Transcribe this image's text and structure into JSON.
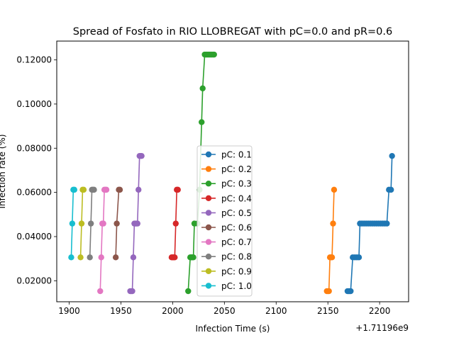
{
  "chart_data": {
    "type": "line",
    "title": "Spread of Fosfato in RIO LLOBREGAT with pC=0.0 and pR=0.6",
    "xlabel": "Infection Time (s)",
    "ylabel": "Infection rate (%)",
    "x_offset_label": "+1.71196e9",
    "xlim": [
      1888,
      2228
    ],
    "ylim": [
      0.0105,
      0.1285
    ],
    "xticks": [
      1900,
      1950,
      2000,
      2050,
      2100,
      2150,
      2200
    ],
    "yticks": [
      0.02,
      0.04,
      0.06,
      0.08,
      0.1,
      0.12
    ],
    "ytick_labels": [
      "0.02000",
      "0.04000",
      "0.06000",
      "0.08000",
      "0.10000",
      "0.12000"
    ],
    "legend_position": "center",
    "series": [
      {
        "name": "pC: 0.1",
        "color": "#1f77b4",
        "x": [
          2169,
          2170,
          2171,
          2172,
          2174,
          2176,
          2178,
          2180,
          2181,
          2183,
          2185,
          2187,
          2189,
          2191,
          2193,
          2195,
          2197,
          2199,
          2201,
          2203,
          2205,
          2207,
          2209,
          2211,
          2212
        ],
        "y": [
          0.0153,
          0.0153,
          0.0153,
          0.0153,
          0.0306,
          0.0306,
          0.0306,
          0.0306,
          0.0459,
          0.0459,
          0.0459,
          0.0459,
          0.0459,
          0.0459,
          0.0459,
          0.0459,
          0.0459,
          0.0459,
          0.0459,
          0.0459,
          0.0459,
          0.0459,
          0.0612,
          0.0612,
          0.0765
        ]
      },
      {
        "name": "pC: 0.2",
        "color": "#ff7f0e",
        "x": [
          2149,
          2150,
          2151,
          2152,
          2153,
          2154,
          2155,
          2156
        ],
        "y": [
          0.0153,
          0.0153,
          0.0153,
          0.0306,
          0.0306,
          0.0306,
          0.0459,
          0.0612
        ]
      },
      {
        "name": "pC: 0.3",
        "color": "#2ca02c",
        "x": [
          2015,
          2017,
          2018,
          2019,
          2020,
          2021,
          2024,
          2026,
          2028,
          2029,
          2031,
          2032,
          2033,
          2034,
          2035,
          2036,
          2037,
          2038,
          2039,
          2040
        ],
        "y": [
          0.0153,
          0.0306,
          0.0306,
          0.0306,
          0.0306,
          0.0459,
          0.0459,
          0.0612,
          0.0918,
          0.1071,
          0.1224,
          0.1224,
          0.1224,
          0.1224,
          0.1224,
          0.1224,
          0.1224,
          0.1224,
          0.1224,
          0.1224
        ]
      },
      {
        "name": "pC: 0.4",
        "color": "#d62728",
        "x": [
          1999,
          2000,
          2001,
          2002,
          2003,
          2004,
          2005
        ],
        "y": [
          0.0306,
          0.0306,
          0.0306,
          0.0306,
          0.0459,
          0.0612,
          0.0612
        ]
      },
      {
        "name": "pC: 0.5",
        "color": "#9467bd",
        "x": [
          1959,
          1960,
          1961,
          1962,
          1963,
          1964,
          1965,
          1966,
          1967,
          1968,
          1969,
          1970
        ],
        "y": [
          0.0153,
          0.0153,
          0.0153,
          0.0306,
          0.0459,
          0.0459,
          0.0459,
          0.0459,
          0.0612,
          0.0765,
          0.0765,
          0.0765
        ]
      },
      {
        "name": "pC: 0.6",
        "color": "#8c564b",
        "x": [
          1945,
          1946,
          1948,
          1949
        ],
        "y": [
          0.0306,
          0.0459,
          0.0612,
          0.0612
        ]
      },
      {
        "name": "pC: 0.7",
        "color": "#e377c2",
        "x": [
          1930,
          1931,
          1932,
          1933,
          1934,
          1935,
          1936
        ],
        "y": [
          0.0153,
          0.0306,
          0.0459,
          0.0459,
          0.0612,
          0.0612,
          0.0612
        ]
      },
      {
        "name": "pC: 0.8",
        "color": "#7f7f7f",
        "x": [
          1920,
          1921,
          1922,
          1923,
          1924
        ],
        "y": [
          0.0306,
          0.0459,
          0.0612,
          0.0612,
          0.0612
        ]
      },
      {
        "name": "pC: 0.9",
        "color": "#bcbd22",
        "x": [
          1911,
          1912,
          1913,
          1914
        ],
        "y": [
          0.0306,
          0.0459,
          0.0612,
          0.0612
        ]
      },
      {
        "name": "pC: 1.0",
        "color": "#17becf",
        "x": [
          1902,
          1903,
          1904,
          1905
        ],
        "y": [
          0.0306,
          0.0459,
          0.0612,
          0.0612
        ]
      }
    ]
  }
}
